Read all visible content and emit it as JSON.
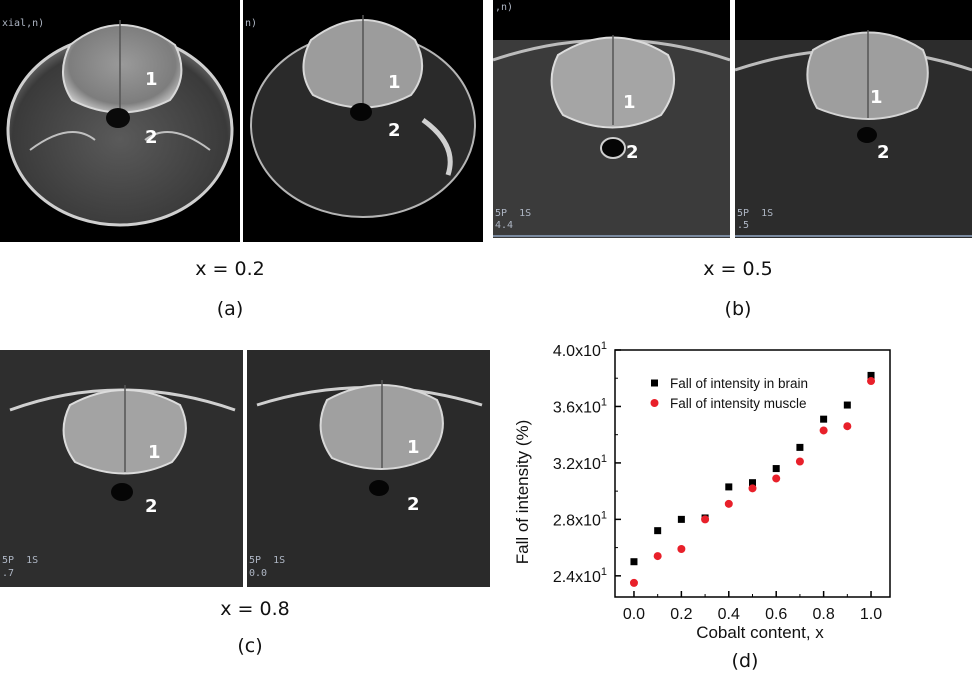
{
  "panels": [
    {
      "id": "a",
      "x_label": "x = 0.2",
      "panel_label": "(a)",
      "slices": [
        {
          "region_labels": [
            "1",
            "2"
          ],
          "corner_texts": [
            "xial,n)",
            "",
            ""
          ]
        },
        {
          "region_labels": [
            "1",
            "2"
          ],
          "corner_texts": [
            "n)",
            "",
            ""
          ]
        }
      ]
    },
    {
      "id": "b",
      "x_label": "x = 0.5",
      "panel_label": "(b)",
      "slices": [
        {
          "region_labels": [
            "1",
            "2"
          ],
          "corner_texts": [
            ",n)",
            "5P  1S",
            "4.4"
          ]
        },
        {
          "region_labels": [
            "1",
            "2"
          ],
          "corner_texts": [
            "",
            "5P  1S",
            ".5"
          ]
        }
      ]
    },
    {
      "id": "c",
      "x_label": "x = 0.8",
      "panel_label": "(c)",
      "slices": [
        {
          "region_labels": [
            "1",
            "2"
          ],
          "corner_texts": [
            "",
            "5P  1S",
            ".7"
          ]
        },
        {
          "region_labels": [
            "1",
            "2"
          ],
          "corner_texts": [
            "",
            "5P  1S",
            "0.0"
          ]
        }
      ]
    }
  ],
  "chart_panel_label": "(d)",
  "chart_data": {
    "type": "scatter",
    "xlabel": "Cobalt content, x",
    "ylabel": "Fall of intensity (%)",
    "xlim": [
      -0.08,
      1.08
    ],
    "ylim": [
      22.5,
      40
    ],
    "xticks": [
      0.0,
      0.2,
      0.4,
      0.6,
      0.8,
      1.0
    ],
    "xtick_labels": [
      "0.0",
      "0.2",
      "0.4",
      "0.6",
      "0.8",
      "1.0"
    ],
    "yticks": [
      24,
      28,
      32,
      36,
      40
    ],
    "ytick_labels": [
      {
        "mantissa": "2.4x10",
        "exp": "1"
      },
      {
        "mantissa": "2.8x10",
        "exp": "1"
      },
      {
        "mantissa": "3.2x10",
        "exp": "1"
      },
      {
        "mantissa": "3.6x10",
        "exp": "1"
      },
      {
        "mantissa": "4.0x10",
        "exp": "1"
      }
    ],
    "legend_position": "top-left",
    "series": [
      {
        "name": "Fall of intensity in brain",
        "marker": "square",
        "color": "#000000",
        "x": [
          0.0,
          0.1,
          0.2,
          0.3,
          0.4,
          0.5,
          0.6,
          0.7,
          0.8,
          0.9,
          1.0
        ],
        "y": [
          25.0,
          27.2,
          28.0,
          28.1,
          30.3,
          30.6,
          31.6,
          33.1,
          35.1,
          36.1,
          38.2
        ]
      },
      {
        "name": "Fall of intensity muscle",
        "marker": "circle",
        "color": "#e8202a",
        "x": [
          0.0,
          0.1,
          0.2,
          0.3,
          0.4,
          0.5,
          0.6,
          0.7,
          0.8,
          0.9,
          1.0
        ],
        "y": [
          23.5,
          25.4,
          25.9,
          28.0,
          29.1,
          30.2,
          30.9,
          32.1,
          34.3,
          34.6,
          37.8
        ]
      }
    ]
  }
}
